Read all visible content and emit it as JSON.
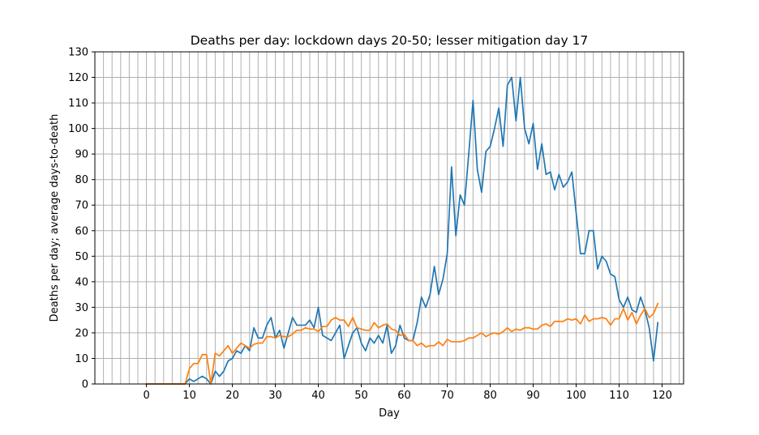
{
  "chart_data": {
    "type": "line",
    "title": "Deaths per day: lockdown days 20-50; lesser mitigation day 17",
    "xlabel": "Day",
    "ylabel": "Deaths per day; average days-to-death",
    "xlim": [
      -12,
      125
    ],
    "ylim": [
      0,
      130
    ],
    "xticks": [
      0,
      10,
      20,
      30,
      40,
      50,
      60,
      70,
      80,
      90,
      100,
      110,
      120
    ],
    "yticks": [
      0,
      10,
      20,
      30,
      40,
      50,
      60,
      70,
      80,
      90,
      100,
      110,
      120,
      130
    ],
    "xtick_labels": [
      "0",
      "10",
      "20",
      "30",
      "40",
      "50",
      "60",
      "70",
      "80",
      "90",
      "100",
      "110",
      "120"
    ],
    "ytick_labels": [
      "0",
      "10",
      "20",
      "30",
      "40",
      "50",
      "60",
      "70",
      "80",
      "90",
      "100",
      "110",
      "120",
      "130"
    ],
    "grid": true,
    "minor_x_grid_step": 2,
    "colors": {
      "series_1": "#1f77b4",
      "series_2": "#ff7f0e",
      "grid": "#b0b0b0"
    },
    "x": [
      0,
      1,
      2,
      3,
      4,
      5,
      6,
      7,
      8,
      9,
      10,
      11,
      12,
      13,
      14,
      15,
      16,
      17,
      18,
      19,
      20,
      21,
      22,
      23,
      24,
      25,
      26,
      27,
      28,
      29,
      30,
      31,
      32,
      33,
      34,
      35,
      36,
      37,
      38,
      39,
      40,
      41,
      42,
      43,
      44,
      45,
      46,
      47,
      48,
      49,
      50,
      51,
      52,
      53,
      54,
      55,
      56,
      57,
      58,
      59,
      60,
      61,
      62,
      63,
      64,
      65,
      66,
      67,
      68,
      69,
      70,
      71,
      72,
      73,
      74,
      75,
      76,
      77,
      78,
      79,
      80,
      81,
      82,
      83,
      84,
      85,
      86,
      87,
      88,
      89,
      90,
      91,
      92,
      93,
      94,
      95,
      96,
      97,
      98,
      99,
      100,
      101,
      102,
      103,
      104,
      105,
      106,
      107,
      108,
      109,
      110,
      111,
      112,
      113,
      114,
      115,
      116,
      117,
      118,
      119
    ],
    "series": [
      {
        "values": [
          0,
          0,
          0,
          0,
          0,
          0,
          0,
          0,
          0,
          0,
          2,
          1,
          2,
          3,
          2,
          0,
          5,
          3,
          5,
          9,
          10,
          13,
          12,
          15,
          13,
          22,
          18,
          18,
          23,
          26,
          18,
          21,
          14,
          20,
          26,
          23,
          23,
          23,
          25,
          22,
          30,
          19,
          18,
          17,
          20,
          23,
          10,
          15,
          20,
          22,
          16,
          13,
          18,
          16,
          19,
          16,
          23,
          12,
          15,
          23,
          18,
          17,
          17,
          24,
          34,
          30,
          35,
          46,
          35,
          41,
          51,
          85,
          58,
          74,
          70,
          90,
          111,
          84,
          75,
          91,
          93,
          100,
          108,
          93,
          117,
          120,
          103,
          120,
          100,
          94,
          102,
          84,
          94,
          82,
          83,
          76,
          82,
          77,
          79,
          83,
          67,
          51,
          51,
          60,
          60,
          45,
          50,
          48,
          43,
          42,
          33,
          30,
          34,
          29,
          28,
          34,
          29,
          22,
          9,
          24
        ]
      },
      {
        "values": [
          0,
          0,
          0,
          0,
          0,
          0,
          0,
          0,
          0,
          0,
          6,
          8,
          8,
          11.5,
          11.5,
          0,
          12,
          11,
          13,
          15,
          12,
          14,
          16,
          15,
          14,
          15.5,
          16,
          16,
          18.5,
          18.5,
          18,
          19,
          18.5,
          18.5,
          19.5,
          21,
          21,
          22,
          21.5,
          21.5,
          20.5,
          22.5,
          22.5,
          25,
          26,
          25,
          25,
          22.5,
          26,
          22,
          21.5,
          21,
          21,
          24,
          22,
          23,
          23.5,
          21.5,
          21,
          19,
          19.5,
          17,
          17,
          15,
          16,
          14.5,
          15,
          15,
          16.5,
          15,
          17.5,
          16.5,
          16.5,
          16.5,
          17,
          18,
          18,
          19,
          20,
          18.5,
          19.5,
          20,
          19.5,
          20.5,
          22,
          20.5,
          21.5,
          21,
          22,
          22,
          21.5,
          21.5,
          23,
          23.5,
          22.5,
          24.5,
          24.5,
          24.5,
          25.5,
          25,
          25.5,
          23.5,
          27,
          24.5,
          25.5,
          25.5,
          26,
          25.5,
          23,
          25.5,
          25.5,
          29.5,
          25,
          28,
          23.5,
          27,
          29.5,
          26,
          27.5,
          31.5
        ]
      }
    ]
  }
}
